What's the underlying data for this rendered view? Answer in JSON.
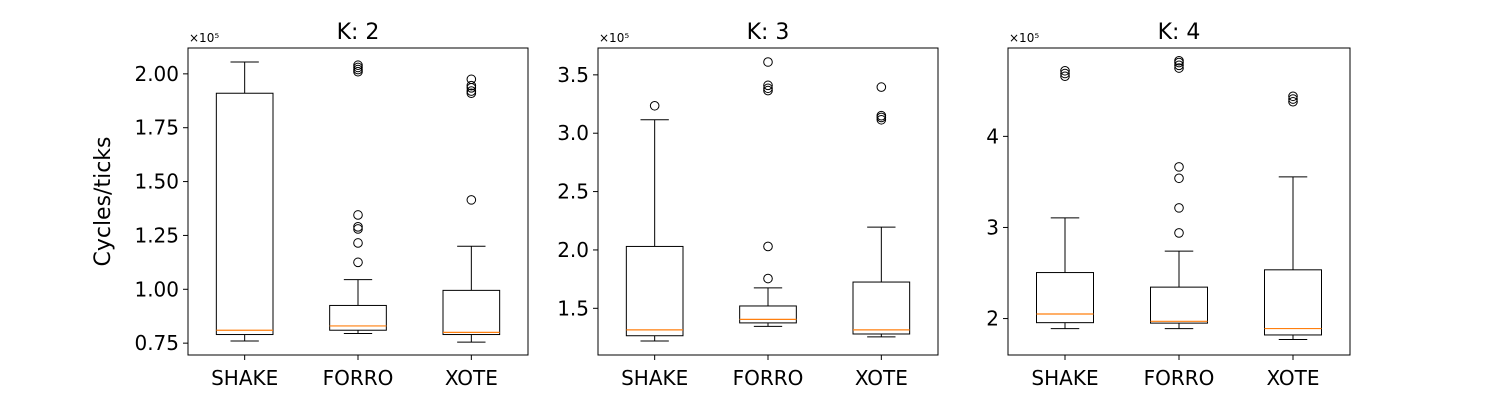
{
  "chart_data": [
    {
      "type": "box",
      "title": "K: 2",
      "ylabel": "Cycles/ticks",
      "scale_label": "×10⁵",
      "categories": [
        "SHAKE",
        "FORRO",
        "XOTE"
      ],
      "ylim": [
        0.695,
        2.12
      ],
      "yticks": [
        0.75,
        1.0,
        1.25,
        1.5,
        1.75,
        2.0
      ],
      "ytick_labels": [
        "0.75",
        "1.00",
        "1.25",
        "1.50",
        "1.75",
        "2.00"
      ],
      "boxes": [
        {
          "category": "SHAKE",
          "whislo": 0.76,
          "q1": 0.79,
          "med": 0.81,
          "q3": 1.91,
          "whishi": 2.055,
          "fliers": []
        },
        {
          "category": "FORRO",
          "whislo": 0.795,
          "q1": 0.81,
          "med": 0.83,
          "q3": 0.925,
          "whishi": 1.045,
          "fliers": [
            1.125,
            1.215,
            1.28,
            1.29,
            1.345,
            2.01,
            2.02,
            2.03,
            2.04
          ]
        },
        {
          "category": "XOTE",
          "whislo": 0.755,
          "q1": 0.79,
          "med": 0.8,
          "q3": 0.995,
          "whishi": 1.2,
          "fliers": [
            1.415,
            1.91,
            1.92,
            1.935,
            1.945,
            1.975
          ]
        }
      ]
    },
    {
      "type": "box",
      "title": "K: 3",
      "ylabel": "",
      "scale_label": "×10⁵",
      "categories": [
        "SHAKE",
        "FORRO",
        "XOTE"
      ],
      "ylim": [
        1.1,
        3.73
      ],
      "yticks": [
        1.5,
        2.0,
        2.5,
        3.0,
        3.5
      ],
      "ytick_labels": [
        "1.5",
        "2.0",
        "2.5",
        "3.0",
        "3.5"
      ],
      "boxes": [
        {
          "category": "SHAKE",
          "whislo": 1.22,
          "q1": 1.265,
          "med": 1.315,
          "q3": 2.03,
          "whishi": 3.115,
          "fliers": [
            3.235
          ]
        },
        {
          "category": "FORRO",
          "whislo": 1.345,
          "q1": 1.375,
          "med": 1.405,
          "q3": 1.52,
          "whishi": 1.675,
          "fliers": [
            1.755,
            2.03,
            3.365,
            3.385,
            3.41,
            3.61
          ]
        },
        {
          "category": "XOTE",
          "whislo": 1.255,
          "q1": 1.28,
          "med": 1.315,
          "q3": 1.725,
          "whishi": 2.195,
          "fliers": [
            3.115,
            3.135,
            3.15,
            3.395
          ]
        }
      ]
    },
    {
      "type": "box",
      "title": "K: 4",
      "ylabel": "",
      "scale_label": "×10⁵",
      "categories": [
        "SHAKE",
        "FORRO",
        "XOTE"
      ],
      "ylim": [
        1.6,
        4.97
      ],
      "yticks": [
        2,
        3,
        4
      ],
      "ytick_labels": [
        "2",
        "3",
        "4"
      ],
      "boxes": [
        {
          "category": "SHAKE",
          "whislo": 1.89,
          "q1": 1.955,
          "med": 2.05,
          "q3": 2.505,
          "whishi": 3.105,
          "fliers": [
            4.66,
            4.69,
            4.72
          ]
        },
        {
          "category": "FORRO",
          "whislo": 1.89,
          "q1": 1.95,
          "med": 1.97,
          "q3": 2.345,
          "whishi": 2.74,
          "fliers": [
            2.94,
            3.215,
            3.54,
            3.665,
            4.75,
            4.78,
            4.81,
            4.83
          ]
        },
        {
          "category": "XOTE",
          "whislo": 1.77,
          "q1": 1.82,
          "med": 1.89,
          "q3": 2.535,
          "whishi": 3.555,
          "fliers": [
            4.38,
            4.41,
            4.44
          ]
        }
      ]
    }
  ]
}
